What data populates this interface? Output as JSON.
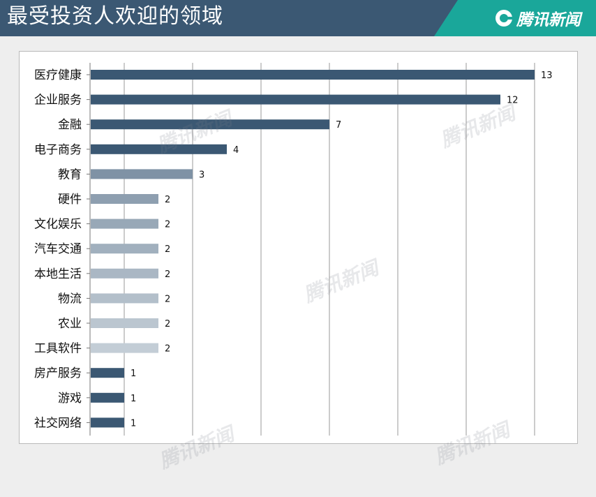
{
  "header": {
    "title": "最受投资人欢迎的领域",
    "brand": "腾讯新闻"
  },
  "colors": {
    "header_bg": "#3b5873",
    "brand_bg": "#1aa79a",
    "dark_bar": "#3b5873"
  },
  "chart_data": {
    "type": "bar",
    "orientation": "horizontal",
    "categories": [
      "医疗健康",
      "企业服务",
      "金融",
      "电子商务",
      "教育",
      "硬件",
      "文化娱乐",
      "汽车交通",
      "本地生活",
      "物流",
      "农业",
      "工具软件",
      "房产服务",
      "游戏",
      "社交网络"
    ],
    "values": [
      13,
      12,
      7,
      4,
      3,
      2,
      2,
      2,
      2,
      2,
      2,
      2,
      1,
      1,
      1
    ],
    "bar_colors": [
      "#3b5873",
      "#3b5873",
      "#3b5873",
      "#3b5873",
      "#7f92a5",
      "#8e9fb0",
      "#98a8b7",
      "#a1b0be",
      "#aab7c4",
      "#b3bfca",
      "#bbc6d0",
      "#c3cdd6",
      "#3b5873",
      "#3b5873",
      "#3b5873"
    ],
    "xlim": [
      0,
      14
    ],
    "grid": true,
    "title": "",
    "xlabel": "",
    "ylabel": ""
  },
  "watermarks": [
    "腾讯新闻",
    "腾讯新闻",
    "腾讯新闻",
    "腾讯新闻",
    "腾讯新闻"
  ]
}
